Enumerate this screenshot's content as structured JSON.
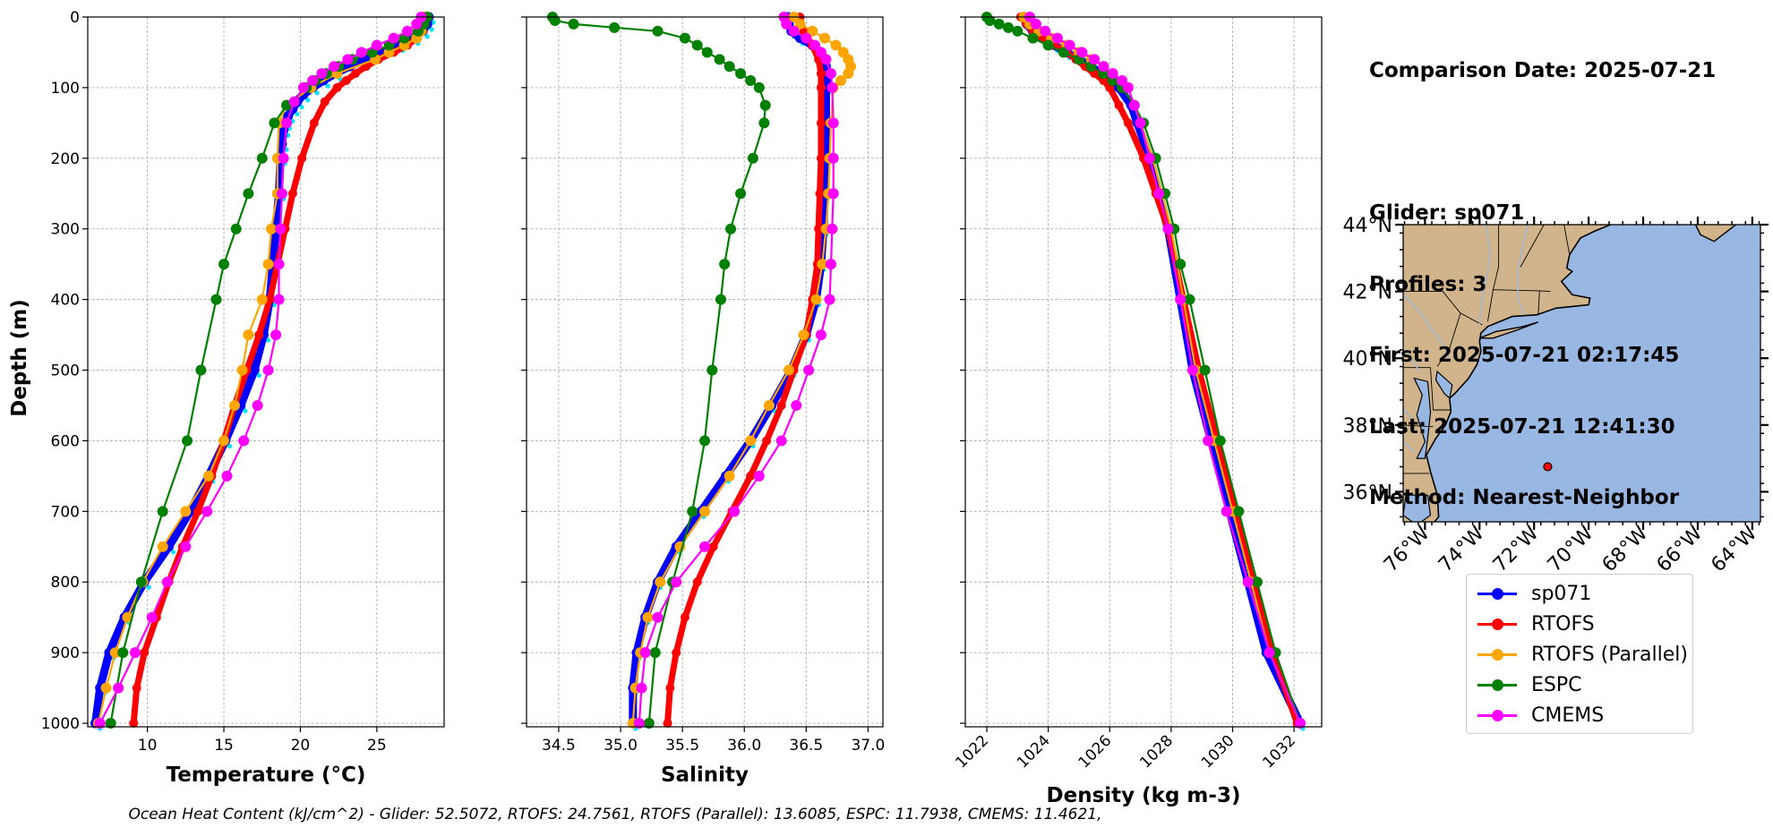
{
  "colors": {
    "sp071": "#0000ff",
    "sp071_raw": "#00e5ff",
    "RTOFS": "#ff0000",
    "RTOFS (Parallel)": "#ffa500",
    "ESPC": "#008000",
    "CMEMS": "#ff00ff",
    "land": "#d2b48c",
    "ocean": "#99b7e3",
    "grid": "#b0b0b0"
  },
  "info": {
    "comparison_date": "Comparison Date: 2025-07-21",
    "glider": "Glider: sp071",
    "profiles": "Profiles: 3",
    "first": "First: 2025-07-21 02:17:45",
    "last": "Last: 2025-07-21 12:41:30",
    "method": "Method: Nearest-Neighbor"
  },
  "caption": "Ocean Heat Content (kJ/cm^2) - Glider: 52.5072,  RTOFS: 24.7561,  RTOFS (Parallel): 13.6085,  ESPC: 11.7938,  CMEMS: 11.4621,",
  "legend": [
    {
      "label": "sp071",
      "key": "sp071"
    },
    {
      "label": "RTOFS",
      "key": "RTOFS"
    },
    {
      "label": "RTOFS (Parallel)",
      "key": "RTOFS (Parallel)"
    },
    {
      "label": "ESPC",
      "key": "ESPC"
    },
    {
      "label": "CMEMS",
      "key": "CMEMS"
    }
  ],
  "map": {
    "lat_ticks": [
      "44°N",
      "42°N",
      "40°N",
      "38°N",
      "36°N"
    ],
    "lon_ticks": [
      "76°W",
      "74°W",
      "72°W",
      "70°W",
      "68°W",
      "66°W",
      "64°W"
    ],
    "lat_range": [
      35.1,
      44.0
    ],
    "lon_range": [
      -76.8,
      -63.7
    ],
    "glider_location": {
      "lat": 36.75,
      "lon": -71.5
    },
    "grid": false
  },
  "chart_data": [
    {
      "type": "line",
      "xlabel": "Temperature (°C)",
      "ylabel": "Depth (m)",
      "xlim": [
        6.1,
        29.4
      ],
      "ylim": [
        1005,
        0
      ],
      "xticks": [
        10,
        15,
        20,
        25
      ],
      "yticks": [
        0,
        100,
        200,
        300,
        400,
        500,
        600,
        700,
        800,
        900,
        1000
      ],
      "grid": true,
      "series": [
        {
          "name": "sp071",
          "depths": [
            0,
            10,
            20,
            30,
            40,
            50,
            60,
            70,
            80,
            90,
            100,
            110,
            120,
            130,
            140,
            150,
            160,
            180,
            200,
            250,
            300,
            350,
            400,
            450,
            500,
            550,
            600,
            650,
            700,
            750,
            800,
            850,
            900,
            950,
            1000
          ],
          "values": [
            28.4,
            28.3,
            28.0,
            27.4,
            26.4,
            25.2,
            24.2,
            23.2,
            22.3,
            21.5,
            20.8,
            20.2,
            19.8,
            19.5,
            19.2,
            19.0,
            18.9,
            18.8,
            18.7,
            18.6,
            18.4,
            18.2,
            18.0,
            17.6,
            17.0,
            16.1,
            15.1,
            14.0,
            12.8,
            11.4,
            9.8,
            8.5,
            7.5,
            6.9,
            6.6
          ]
        },
        {
          "name": "RTOFS",
          "depths": [
            0,
            10,
            20,
            30,
            40,
            50,
            60,
            70,
            80,
            90,
            100,
            120,
            150,
            200,
            250,
            300,
            350,
            400,
            450,
            500,
            550,
            600,
            650,
            700,
            750,
            800,
            850,
            900,
            950,
            1000
          ],
          "values": [
            28.2,
            28.1,
            28.0,
            27.6,
            27.0,
            26.1,
            25.1,
            24.3,
            23.6,
            23.0,
            22.4,
            21.6,
            20.9,
            20.1,
            19.5,
            19.0,
            18.5,
            18.0,
            17.3,
            16.5,
            15.7,
            15.0,
            14.2,
            13.3,
            12.3,
            11.4,
            10.6,
            9.8,
            9.3,
            9.1
          ]
        },
        {
          "name": "RTOFS (Parallel)",
          "depths": [
            0,
            10,
            20,
            30,
            40,
            50,
            60,
            80,
            100,
            125,
            150,
            200,
            250,
            300,
            350,
            400,
            450,
            500,
            550,
            600,
            650,
            700,
            750,
            800,
            850,
            900,
            950,
            1000
          ],
          "values": [
            28.1,
            28.0,
            27.9,
            27.6,
            26.8,
            25.8,
            24.9,
            22.4,
            20.7,
            19.1,
            18.6,
            18.5,
            18.5,
            18.1,
            17.9,
            17.5,
            16.6,
            16.2,
            15.7,
            15.0,
            14.0,
            12.5,
            11.0,
            9.7,
            8.7,
            7.9,
            7.3,
            6.8
          ]
        },
        {
          "name": "ESPC",
          "depths": [
            0,
            10,
            20,
            30,
            40,
            50,
            60,
            70,
            80,
            90,
            100,
            125,
            150,
            200,
            250,
            300,
            350,
            400,
            500,
            600,
            700,
            800,
            900,
            1000
          ],
          "values": [
            28.3,
            28.1,
            27.7,
            26.8,
            25.8,
            24.7,
            23.4,
            22.5,
            21.7,
            21.0,
            20.4,
            19.1,
            18.3,
            17.5,
            16.6,
            15.8,
            15.0,
            14.5,
            13.5,
            12.6,
            11.0,
            9.6,
            8.4,
            7.6
          ]
        },
        {
          "name": "CMEMS",
          "depths": [
            0,
            10,
            20,
            30,
            40,
            50,
            60,
            70,
            80,
            90,
            100,
            120,
            150,
            200,
            250,
            300,
            350,
            400,
            450,
            500,
            550,
            600,
            650,
            700,
            750,
            800,
            850,
            900,
            950,
            1000
          ],
          "values": [
            27.9,
            27.6,
            27.0,
            26.1,
            25.0,
            24.0,
            23.1,
            22.2,
            21.4,
            20.8,
            20.2,
            19.6,
            19.1,
            18.9,
            18.8,
            18.7,
            18.6,
            18.6,
            18.4,
            17.9,
            17.2,
            16.3,
            15.2,
            13.9,
            12.5,
            11.3,
            10.3,
            9.2,
            8.1,
            6.9
          ]
        }
      ]
    },
    {
      "type": "line",
      "xlabel": "Salinity",
      "xlim": [
        34.24,
        37.12
      ],
      "ylim": [
        1005,
        0
      ],
      "xticks": [
        34.5,
        35.0,
        35.5,
        36.0,
        36.5,
        37.0
      ],
      "yticks": [
        0,
        100,
        200,
        300,
        400,
        500,
        600,
        700,
        800,
        900,
        1000
      ],
      "grid": true,
      "series": [
        {
          "name": "sp071",
          "depths": [
            0,
            10,
            20,
            30,
            40,
            50,
            60,
            70,
            80,
            90,
            100,
            150,
            200,
            250,
            300,
            350,
            400,
            450,
            500,
            550,
            600,
            650,
            700,
            750,
            800,
            850,
            900,
            950,
            1000
          ],
          "values": [
            36.35,
            36.36,
            36.38,
            36.45,
            36.55,
            36.62,
            36.65,
            36.66,
            36.66,
            36.66,
            36.66,
            36.66,
            36.66,
            36.65,
            36.64,
            36.62,
            36.58,
            36.5,
            36.38,
            36.22,
            36.05,
            35.85,
            35.65,
            35.45,
            35.3,
            35.2,
            35.13,
            35.1,
            35.1
          ]
        },
        {
          "name": "RTOFS",
          "depths": [
            0,
            20,
            40,
            60,
            80,
            100,
            150,
            200,
            250,
            300,
            350,
            400,
            450,
            500,
            550,
            600,
            650,
            700,
            750,
            800,
            850,
            900,
            950,
            1000
          ],
          "values": [
            36.45,
            36.48,
            36.55,
            36.6,
            36.62,
            36.62,
            36.62,
            36.62,
            36.61,
            36.6,
            36.59,
            36.55,
            36.5,
            36.4,
            36.3,
            36.18,
            36.05,
            35.9,
            35.75,
            35.62,
            35.52,
            35.45,
            35.4,
            35.38
          ]
        },
        {
          "name": "RTOFS (Parallel)",
          "depths": [
            0,
            10,
            20,
            30,
            40,
            50,
            60,
            70,
            80,
            90,
            100,
            150,
            200,
            250,
            300,
            350,
            400,
            450,
            500,
            550,
            600,
            650,
            700,
            750,
            800,
            850,
            900,
            950,
            1000
          ],
          "values": [
            36.4,
            36.45,
            36.55,
            36.65,
            36.74,
            36.8,
            36.84,
            36.86,
            36.84,
            36.78,
            36.72,
            36.7,
            36.69,
            36.68,
            36.66,
            36.63,
            36.58,
            36.48,
            36.36,
            36.2,
            36.05,
            35.88,
            35.68,
            35.48,
            35.32,
            35.22,
            35.16,
            35.12,
            35.1
          ]
        },
        {
          "name": "ESPC",
          "depths": [
            0,
            5,
            10,
            15,
            20,
            30,
            40,
            50,
            60,
            70,
            80,
            90,
            100,
            125,
            150,
            200,
            250,
            300,
            350,
            400,
            500,
            600,
            700,
            800,
            900,
            1000
          ],
          "values": [
            34.45,
            34.47,
            34.62,
            34.95,
            35.3,
            35.52,
            35.62,
            35.7,
            35.8,
            35.88,
            35.97,
            36.05,
            36.12,
            36.17,
            36.16,
            36.07,
            35.97,
            35.89,
            35.84,
            35.81,
            35.74,
            35.68,
            35.58,
            35.42,
            35.28,
            35.23
          ]
        },
        {
          "name": "CMEMS",
          "depths": [
            0,
            10,
            20,
            30,
            40,
            50,
            60,
            80,
            100,
            150,
            200,
            250,
            300,
            350,
            400,
            450,
            500,
            550,
            600,
            650,
            700,
            750,
            800,
            850,
            900,
            950,
            1000
          ],
          "values": [
            36.32,
            36.34,
            36.4,
            36.5,
            36.57,
            36.62,
            36.66,
            36.7,
            36.71,
            36.72,
            36.72,
            36.72,
            36.71,
            36.7,
            36.69,
            36.62,
            36.52,
            36.42,
            36.3,
            36.12,
            35.92,
            35.68,
            35.45,
            35.3,
            35.2,
            35.17,
            35.15
          ]
        }
      ]
    },
    {
      "type": "line",
      "xlabel": "Density (kg m-3)",
      "xlim": [
        1021.3,
        1032.9
      ],
      "ylim": [
        1005,
        0
      ],
      "xticks": [
        1022,
        1024,
        1026,
        1028,
        1030,
        1032
      ],
      "yticks": [
        0,
        100,
        200,
        300,
        400,
        500,
        600,
        700,
        800,
        900,
        1000
      ],
      "grid": true,
      "series": [
        {
          "name": "sp071",
          "depths": [
            0,
            10,
            20,
            30,
            40,
            50,
            60,
            70,
            80,
            90,
            100,
            125,
            150,
            200,
            250,
            300,
            400,
            500,
            600,
            700,
            800,
            900,
            1000
          ],
          "values": [
            1023.2,
            1023.3,
            1023.5,
            1023.8,
            1024.2,
            1024.6,
            1025.0,
            1025.4,
            1025.7,
            1026.0,
            1026.3,
            1026.7,
            1026.9,
            1027.3,
            1027.6,
            1027.9,
            1028.3,
            1028.7,
            1029.3,
            1029.9,
            1030.5,
            1031.1,
            1032.2
          ]
        },
        {
          "name": "RTOFS",
          "depths": [
            0,
            10,
            20,
            30,
            40,
            50,
            60,
            70,
            80,
            90,
            100,
            125,
            150,
            200,
            250,
            300,
            400,
            500,
            600,
            700,
            800,
            900,
            1000
          ],
          "values": [
            1023.1,
            1023.3,
            1023.5,
            1023.8,
            1024.2,
            1024.6,
            1024.9,
            1025.2,
            1025.5,
            1025.8,
            1026.0,
            1026.3,
            1026.6,
            1027.1,
            1027.5,
            1027.9,
            1028.4,
            1028.9,
            1029.5,
            1030.1,
            1030.7,
            1031.3,
            1032.1
          ]
        },
        {
          "name": "RTOFS (Parallel)",
          "depths": [
            0,
            10,
            20,
            30,
            40,
            50,
            60,
            70,
            80,
            90,
            100,
            125,
            150,
            200,
            250,
            300,
            400,
            500,
            600,
            700,
            800,
            900,
            1000
          ],
          "values": [
            1023.2,
            1023.4,
            1023.7,
            1024.1,
            1024.6,
            1025.0,
            1025.4,
            1025.8,
            1026.1,
            1026.4,
            1026.6,
            1026.8,
            1027.0,
            1027.4,
            1027.7,
            1028.0,
            1028.4,
            1028.8,
            1029.4,
            1030.0,
            1030.6,
            1031.2,
            1032.2
          ]
        },
        {
          "name": "ESPC",
          "depths": [
            0,
            5,
            10,
            15,
            20,
            30,
            40,
            50,
            60,
            70,
            80,
            90,
            100,
            125,
            150,
            200,
            250,
            300,
            350,
            400,
            500,
            600,
            700,
            800,
            900,
            1000
          ],
          "values": [
            1022.0,
            1022.1,
            1022.4,
            1022.7,
            1023.0,
            1023.5,
            1024.0,
            1024.5,
            1025.0,
            1025.4,
            1025.8,
            1026.1,
            1026.4,
            1026.8,
            1027.1,
            1027.5,
            1027.8,
            1028.1,
            1028.3,
            1028.6,
            1029.1,
            1029.6,
            1030.2,
            1030.8,
            1031.4,
            1032.2
          ]
        },
        {
          "name": "CMEMS",
          "depths": [
            0,
            10,
            20,
            30,
            40,
            50,
            60,
            70,
            80,
            90,
            100,
            125,
            150,
            200,
            250,
            300,
            400,
            500,
            600,
            700,
            800,
            900,
            1000
          ],
          "values": [
            1023.4,
            1023.6,
            1023.9,
            1024.3,
            1024.7,
            1025.1,
            1025.5,
            1025.8,
            1026.1,
            1026.4,
            1026.6,
            1026.8,
            1027.0,
            1027.3,
            1027.6,
            1027.9,
            1028.3,
            1028.7,
            1029.2,
            1029.8,
            1030.5,
            1031.2,
            1032.2
          ]
        }
      ]
    }
  ]
}
